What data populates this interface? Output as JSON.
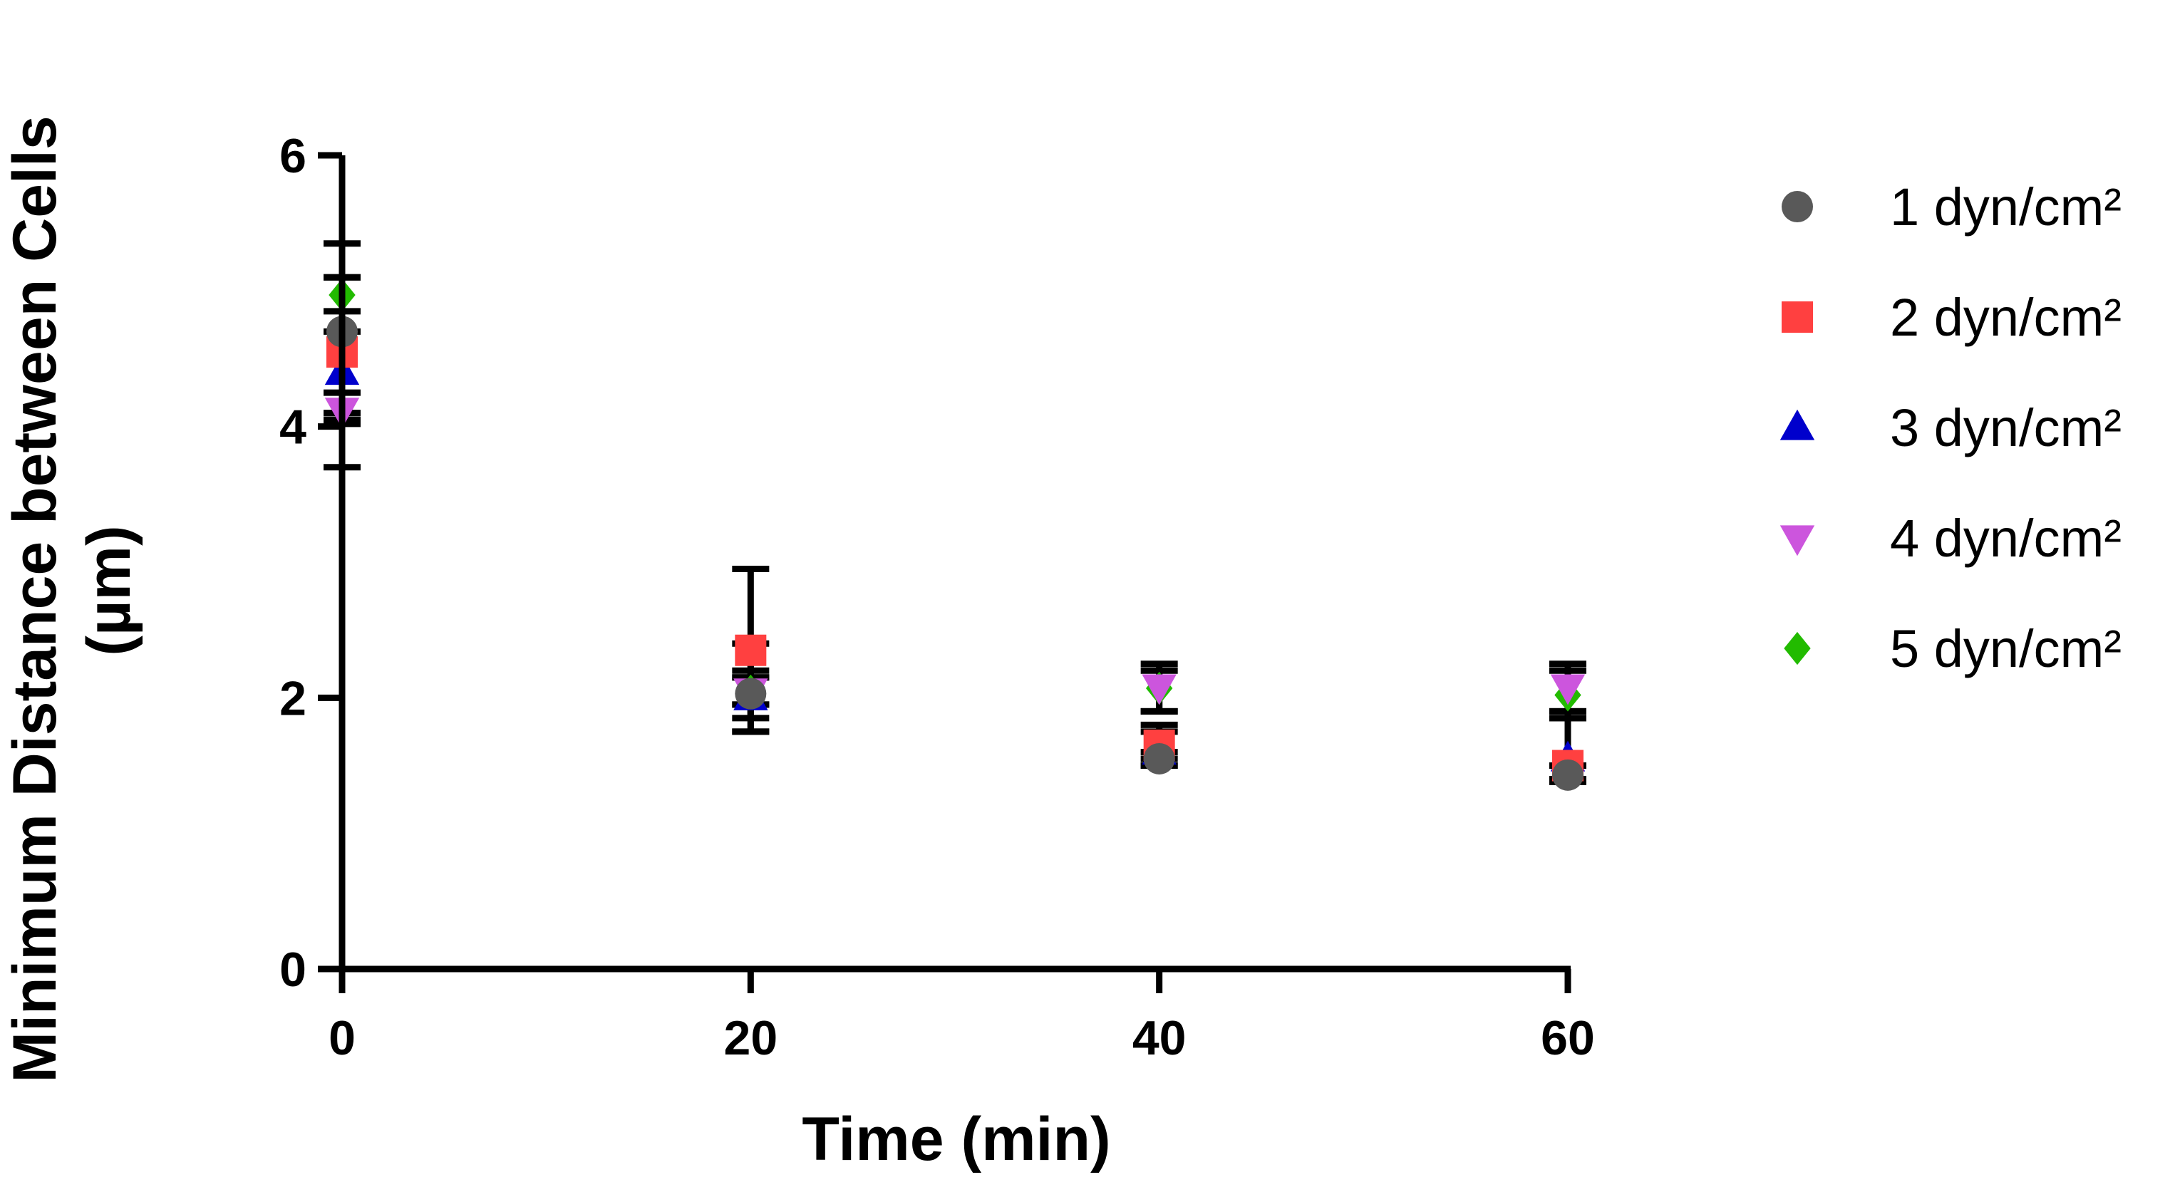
{
  "chart_data": {
    "type": "scatter",
    "xlabel": "Time (min)",
    "ylabel": [
      "Minimum Distance between Cells",
      "(µm)"
    ],
    "xlim": [
      0,
      60
    ],
    "ylim": [
      0,
      6
    ],
    "xticks": [
      0,
      20,
      40,
      60
    ],
    "yticks": [
      0,
      2,
      4,
      6
    ],
    "grid": false,
    "legend_position": "right",
    "x": [
      0,
      20,
      40,
      60
    ],
    "series": [
      {
        "name": "1 dyn/cm²",
        "marker": "circle",
        "color": "#595959",
        "values": [
          4.7,
          2.03,
          1.55,
          1.43
        ],
        "err_low": [
          3.7,
          1.75,
          1.5,
          1.38
        ],
        "err_high": [
          5.35,
          2.4,
          1.6,
          1.5
        ]
      },
      {
        "name": "2 dyn/cm²",
        "marker": "square",
        "color": "#ff4040",
        "values": [
          4.55,
          2.35,
          1.65,
          1.5
        ],
        "err_low": [
          4.05,
          1.75,
          1.55,
          1.4
        ],
        "err_high": [
          5.1,
          2.95,
          1.75,
          1.9
        ]
      },
      {
        "name": "3 dyn/cm²",
        "marker": "triangle-up",
        "color": "#0000cc",
        "values": [
          4.4,
          2.0,
          1.6,
          1.55
        ],
        "err_low": [
          4.1,
          1.85,
          1.5,
          1.4
        ],
        "err_high": [
          4.7,
          2.15,
          1.8,
          1.85
        ]
      },
      {
        "name": "4 dyn/cm²",
        "marker": "triangle-down",
        "color": "#cc55dd",
        "values": [
          4.12,
          2.05,
          2.08,
          2.08
        ],
        "err_low": [
          4.02,
          1.95,
          1.9,
          1.9
        ],
        "err_high": [
          4.25,
          2.2,
          2.25,
          2.25
        ]
      },
      {
        "name": "5 dyn/cm²",
        "marker": "diamond",
        "color": "#22bb00",
        "values": [
          4.97,
          2.05,
          2.07,
          2.02
        ],
        "err_low": [
          4.85,
          1.95,
          1.9,
          1.85
        ],
        "err_high": [
          5.1,
          2.15,
          2.2,
          2.2
        ]
      }
    ]
  }
}
